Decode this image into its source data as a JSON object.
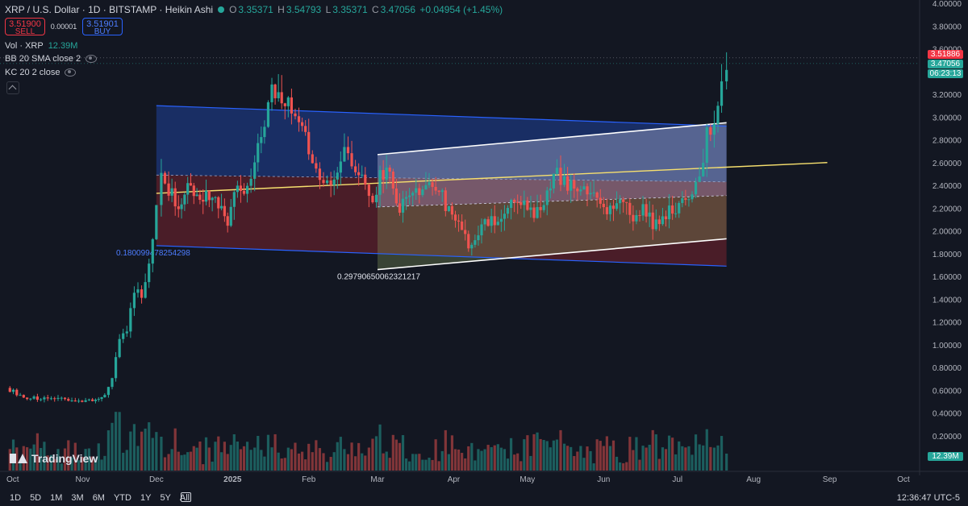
{
  "legend": {
    "symbol": "XRP / U.S. Dollar · 1D · BITSTAMP · Heikin Ashi",
    "o": "3.35371",
    "h": "3.54793",
    "l": "3.35371",
    "c": "3.47056",
    "change": "+0.04954 (+1.45%)"
  },
  "trade": {
    "sell_price": "3.51900",
    "sell_label": "SELL",
    "spread": "0.00001",
    "buy_price": "3.51901",
    "buy_label": "BUY"
  },
  "indicators": {
    "vol_label": "Vol · XRP",
    "vol_value": "12.39M",
    "bb": "BB 20 SMA close 2",
    "kc": "KC 20 2 close"
  },
  "price_tags": {
    "sell_price": "3.51886",
    "last_price": "3.47056",
    "countdown": "06:23:13",
    "volume": "12.39M"
  },
  "annotations": {
    "fib_left": "0.180099478254298",
    "fib_right": "0.29790650062321217"
  },
  "bottom": {
    "ranges": [
      "1D",
      "5D",
      "1M",
      "3M",
      "6M",
      "YTD",
      "1Y",
      "5Y",
      "All"
    ],
    "clock": "12:36:47 UTC-5"
  },
  "brand": "TradingView",
  "colors": {
    "up": "#26a69a",
    "down": "#ef5350",
    "channel_blue": "#2962ff",
    "channel_white": "#ffffff",
    "midline": "#f7e06e"
  },
  "chart_data": {
    "type": "line",
    "title": "XRP / U.S. Dollar · 1D · BITSTAMP · Heikin Ashi",
    "x_ticks": [
      "Oct",
      "Nov",
      "Dec",
      "2025",
      "Feb",
      "Mar",
      "Apr",
      "May",
      "Jun",
      "Jul",
      "Aug",
      "Sep",
      "Oct"
    ],
    "y_ticks": [
      "0.20000",
      "0.40000",
      "0.60000",
      "0.80000",
      "1.00000",
      "1.20000",
      "1.40000",
      "1.60000",
      "1.80000",
      "2.00000",
      "2.20000",
      "2.40000",
      "2.60000",
      "2.80000",
      "3.00000",
      "3.20000",
      "3.40000",
      "3.60000",
      "3.80000",
      "4.00000"
    ],
    "ylim": [
      0.0,
      4.0
    ],
    "grid": false,
    "series": [
      {
        "points": [
          [
            "2024-10-01",
            0.62
          ],
          [
            "2024-10-08",
            0.54
          ],
          [
            "2024-10-15",
            0.53
          ],
          [
            "2024-10-22",
            0.52
          ],
          [
            "2024-10-29",
            0.51
          ],
          [
            "2024-11-05",
            0.51
          ],
          [
            "2024-11-10",
            0.56
          ],
          [
            "2024-11-13",
            0.72
          ],
          [
            "2024-11-16",
            1.05
          ],
          [
            "2024-11-19",
            1.12
          ],
          [
            "2024-11-22",
            1.48
          ],
          [
            "2024-11-25",
            1.45
          ],
          [
            "2024-11-28",
            1.7
          ],
          [
            "2024-12-01",
            2.2
          ],
          [
            "2024-12-03",
            2.5
          ],
          [
            "2024-12-06",
            2.35
          ],
          [
            "2024-12-10",
            2.25
          ],
          [
            "2024-12-15",
            2.4
          ],
          [
            "2024-12-20",
            2.3
          ],
          [
            "2024-12-25",
            2.25
          ],
          [
            "2024-12-30",
            2.1
          ],
          [
            "2025-01-03",
            2.4
          ],
          [
            "2025-01-07",
            2.35
          ],
          [
            "2025-01-10",
            2.6
          ],
          [
            "2025-01-14",
            2.95
          ],
          [
            "2025-01-17",
            3.25
          ],
          [
            "2025-01-21",
            3.15
          ],
          [
            "2025-01-25",
            3.05
          ],
          [
            "2025-01-28",
            3.0
          ],
          [
            "2025-02-01",
            2.7
          ],
          [
            "2025-02-04",
            2.55
          ],
          [
            "2025-02-07",
            2.45
          ],
          [
            "2025-02-10",
            2.42
          ],
          [
            "2025-02-14",
            2.65
          ],
          [
            "2025-02-17",
            2.7
          ],
          [
            "2025-02-20",
            2.55
          ],
          [
            "2025-02-24",
            2.45
          ],
          [
            "2025-02-27",
            2.2
          ],
          [
            "2025-03-02",
            2.55
          ],
          [
            "2025-03-06",
            2.45
          ],
          [
            "2025-03-10",
            2.2
          ],
          [
            "2025-03-14",
            2.3
          ],
          [
            "2025-03-18",
            2.35
          ],
          [
            "2025-03-22",
            2.45
          ],
          [
            "2025-03-26",
            2.4
          ],
          [
            "2025-03-30",
            2.15
          ],
          [
            "2025-04-03",
            2.05
          ],
          [
            "2025-04-07",
            1.85
          ],
          [
            "2025-04-11",
            2.0
          ],
          [
            "2025-04-15",
            2.1
          ],
          [
            "2025-04-19",
            2.08
          ],
          [
            "2025-04-23",
            2.2
          ],
          [
            "2025-04-27",
            2.25
          ],
          [
            "2025-05-01",
            2.2
          ],
          [
            "2025-05-05",
            2.15
          ],
          [
            "2025-05-09",
            2.3
          ],
          [
            "2025-05-13",
            2.5
          ],
          [
            "2025-05-16",
            2.45
          ],
          [
            "2025-05-20",
            2.35
          ],
          [
            "2025-05-24",
            2.4
          ],
          [
            "2025-05-28",
            2.3
          ],
          [
            "2025-06-01",
            2.2
          ],
          [
            "2025-06-05",
            2.15
          ],
          [
            "2025-06-09",
            2.25
          ],
          [
            "2025-06-13",
            2.15
          ],
          [
            "2025-06-17",
            2.2
          ],
          [
            "2025-06-21",
            2.05
          ],
          [
            "2025-06-25",
            2.1
          ],
          [
            "2025-06-29",
            2.2
          ],
          [
            "2025-07-03",
            2.25
          ],
          [
            "2025-07-07",
            2.3
          ],
          [
            "2025-07-10",
            2.45
          ],
          [
            "2025-07-13",
            2.85
          ],
          [
            "2025-07-16",
            2.95
          ],
          [
            "2025-07-19",
            3.3
          ],
          [
            "2025-07-21",
            3.47
          ]
        ]
      }
    ]
  }
}
